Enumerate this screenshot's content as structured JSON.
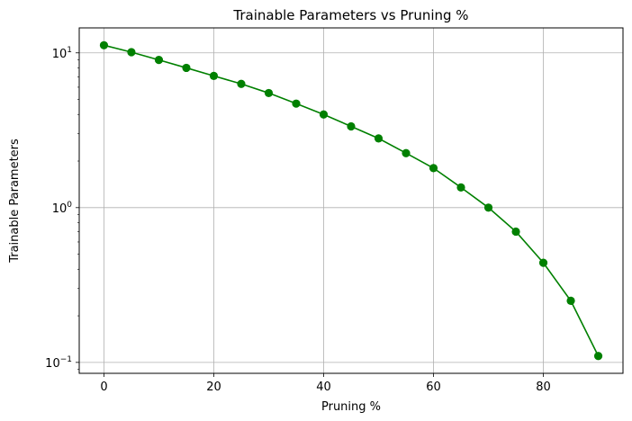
{
  "chart_data": {
    "type": "line",
    "title": "Trainable Parameters vs Pruning %",
    "xlabel": "Pruning %",
    "ylabel": "Trainable Parameters",
    "yscale": "log",
    "grid": true,
    "xlim": [
      -4.5,
      94.5
    ],
    "ylim": [
      0.085,
      14.5
    ],
    "xticks": [
      0,
      20,
      40,
      60,
      80
    ],
    "yticks": [
      {
        "value": 0.1,
        "base": "10",
        "exp": "−1"
      },
      {
        "value": 1,
        "base": "10",
        "exp": "0"
      },
      {
        "value": 10,
        "base": "10",
        "exp": "1"
      }
    ],
    "color": "#008000",
    "series": [
      {
        "x": [
          0,
          5,
          10,
          15,
          20,
          25,
          30,
          35,
          40,
          45,
          50,
          55,
          60,
          65,
          70,
          75,
          80,
          85,
          90
        ],
        "values": [
          11.2,
          10.1,
          9.0,
          8.0,
          7.1,
          6.3,
          5.5,
          4.7,
          4.0,
          3.35,
          2.8,
          2.25,
          1.8,
          1.35,
          1.0,
          0.7,
          0.44,
          0.25,
          0.11
        ]
      }
    ]
  }
}
